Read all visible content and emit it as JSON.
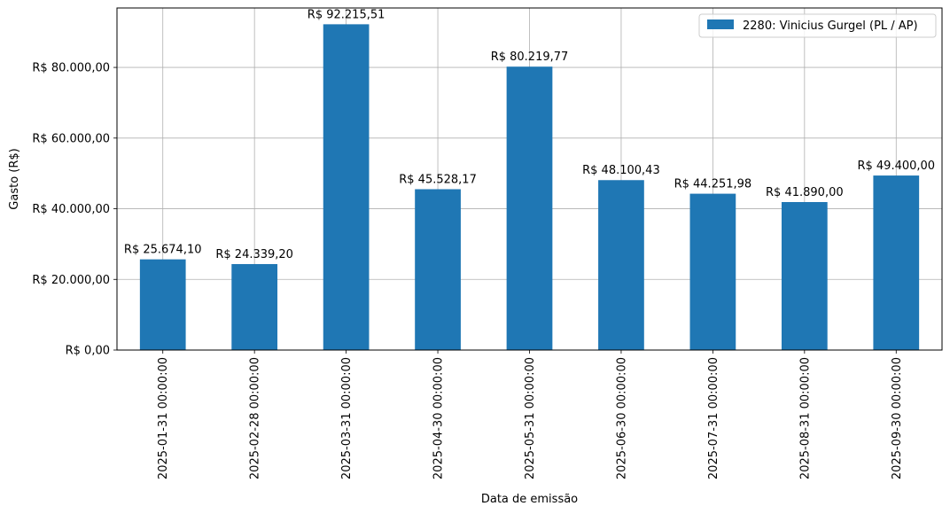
{
  "chart_data": {
    "type": "bar",
    "title": "",
    "xlabel": "Data de emissão",
    "ylabel": "Gasto (R$)",
    "categories": [
      "2025-01-31 00:00:00",
      "2025-02-28 00:00:00",
      "2025-03-31 00:00:00",
      "2025-04-30 00:00:00",
      "2025-05-31 00:00:00",
      "2025-06-30 00:00:00",
      "2025-07-31 00:00:00",
      "2025-08-31 00:00:00",
      "2025-09-30 00:00:00"
    ],
    "series": [
      {
        "name": "2280: Vinicius Gurgel (PL / AP)",
        "color": "#1f77b4",
        "values": [
          25674.1,
          24339.2,
          92215.51,
          45528.17,
          80219.77,
          48100.43,
          44251.98,
          41890.0,
          49400.0
        ],
        "value_labels": [
          "R$ 25.674,10",
          "R$ 24.339,20",
          "R$ 92.215,51",
          "R$ 45.528,17",
          "R$ 80.219,77",
          "R$ 48.100,43",
          "R$ 44.251,98",
          "R$ 41.890,00",
          "R$ 49.400,00"
        ]
      }
    ],
    "yticks": [
      0,
      20000,
      40000,
      60000,
      80000
    ],
    "ytick_labels": [
      "R$ 0,00",
      "R$ 20.000,00",
      "R$ 40.000,00",
      "R$ 60.000,00",
      "R$ 80.000,00"
    ],
    "ylim": [
      0,
      96826
    ],
    "grid": true,
    "legend": "upper right",
    "x_tick_rotation": "vertical"
  }
}
